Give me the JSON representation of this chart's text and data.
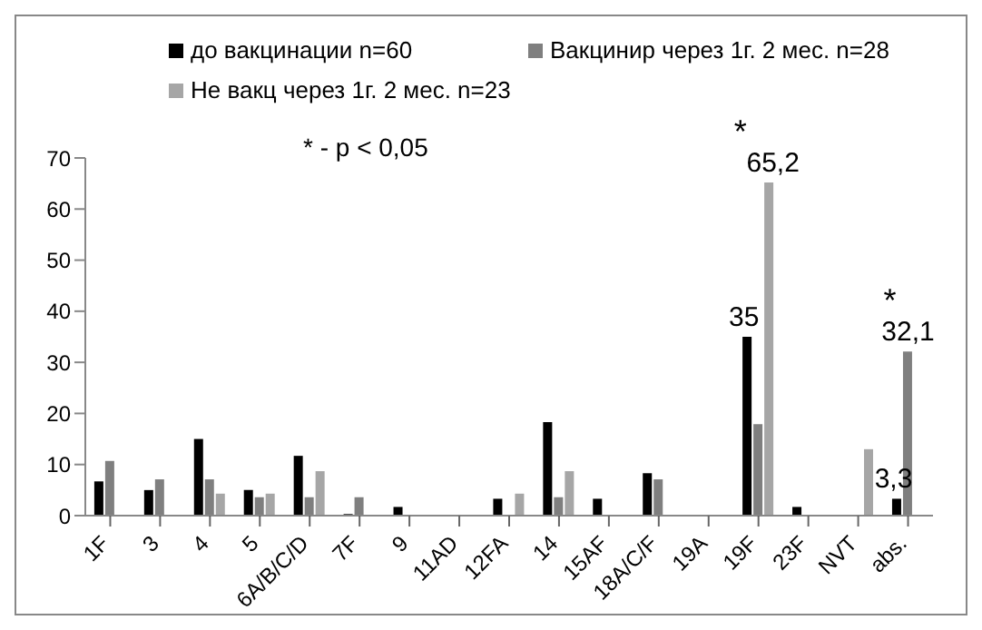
{
  "chart_data": {
    "type": "bar",
    "categories": [
      "1F",
      "3",
      "4",
      "5",
      "6A/B/C/D",
      "7F",
      "9",
      "11AD",
      "12FA",
      "14",
      "15AF",
      "18A/C/F",
      "19A",
      "19F",
      "23F",
      "NVT",
      "abs."
    ],
    "series": [
      {
        "name": "до вакцинации n=60",
        "color": "#000000",
        "values": [
          6.7,
          5,
          15,
          5,
          11.7,
          0.3,
          1.7,
          0,
          3.3,
          18.3,
          3.3,
          8.3,
          0,
          35,
          1.7,
          0,
          3.3
        ],
        "value_labels": [
          null,
          null,
          null,
          null,
          null,
          null,
          null,
          null,
          null,
          null,
          null,
          null,
          null,
          "35",
          null,
          null,
          "3,3"
        ]
      },
      {
        "name": "Вакцинир через 1г. 2 мес. n=28",
        "color": "#7f7f7f",
        "values": [
          10.7,
          7.1,
          7.1,
          3.6,
          3.6,
          3.6,
          0,
          0,
          0,
          3.6,
          0,
          7.1,
          0,
          17.9,
          0,
          0,
          32.1
        ],
        "value_labels": [
          null,
          null,
          null,
          null,
          null,
          null,
          null,
          null,
          null,
          null,
          null,
          null,
          null,
          null,
          null,
          null,
          "32,1"
        ]
      },
      {
        "name": "Не вакц через 1г. 2 мес. n=23",
        "color": "#a6a6a6",
        "values": [
          0,
          0,
          4.3,
          4.3,
          8.7,
          0,
          0,
          0,
          4.3,
          8.7,
          0,
          0,
          0,
          65.2,
          0,
          13,
          0
        ],
        "value_labels": [
          null,
          null,
          null,
          null,
          null,
          null,
          null,
          null,
          null,
          null,
          null,
          null,
          null,
          "65,2",
          null,
          null,
          null
        ]
      }
    ],
    "ylim": [
      0,
      70
    ],
    "yticks": [
      0,
      10,
      20,
      30,
      40,
      50,
      60,
      70
    ],
    "grid": false,
    "legend": "top",
    "annotations": [
      "* - p < 0,05",
      {
        "text": "*",
        "x": "19F",
        "y": 65.2
      },
      {
        "text": "*",
        "x": "abs.",
        "y": 32.1
      }
    ]
  }
}
